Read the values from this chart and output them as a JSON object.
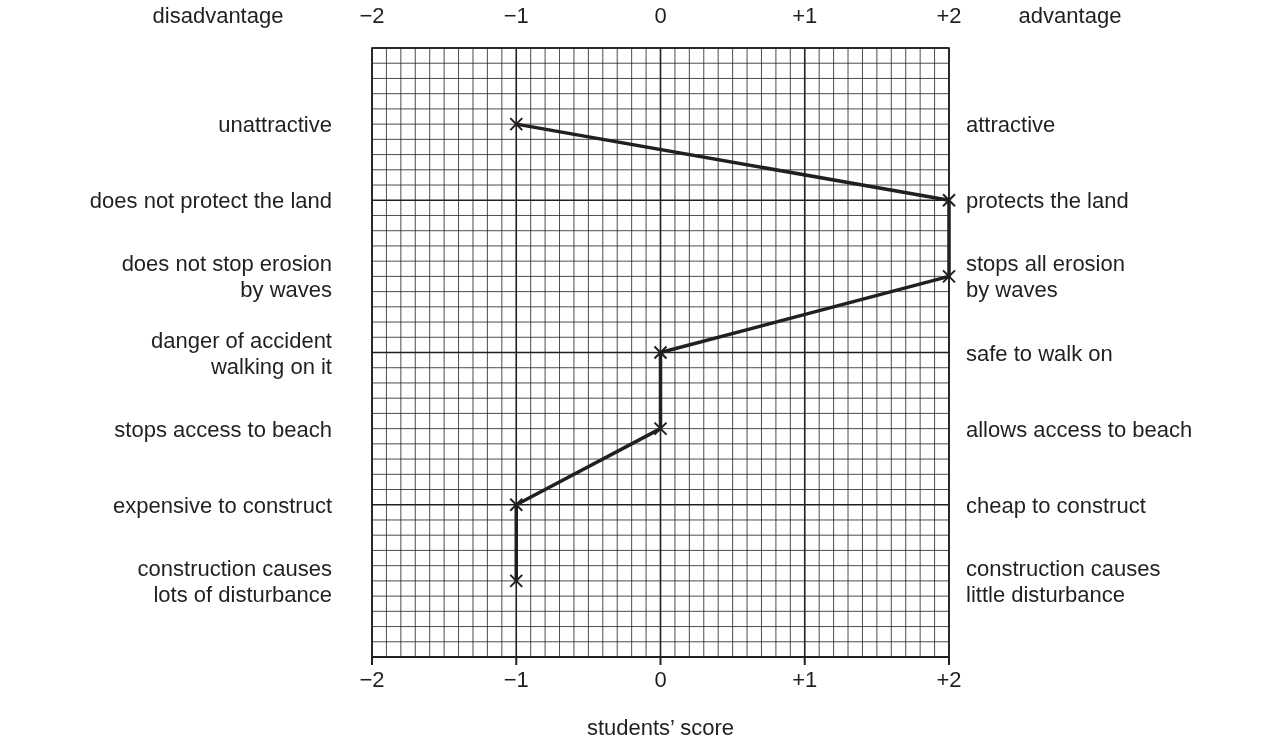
{
  "chart_data": {
    "type": "line",
    "orientation": "horizontal",
    "categories": [
      "unattractive",
      "does not protect the land",
      "does not stop erosion\nby waves",
      "danger of accident\nwalking on it",
      "stops access to beach",
      "expensive to construct",
      "construction causes\nlots of disturbance"
    ],
    "y2_categories": [
      "attractive",
      "protects the land",
      "stops all erosion\nby waves",
      "safe to walk on",
      "allows access to beach",
      "cheap to construct",
      "construction causes\nlittle disturbance"
    ],
    "series": [
      {
        "color": "#231f20",
        "values": [
          -1,
          2,
          2,
          0,
          0,
          -1,
          -1
        ]
      }
    ],
    "xlim": [
      -2,
      2
    ],
    "xticks": [
      {
        "value": -2,
        "label": "−2"
      },
      {
        "value": -1,
        "label": "−1"
      },
      0,
      {
        "value": 1,
        "label": "+1"
      },
      {
        "value": 2,
        "label": "+2"
      }
    ],
    "x2lim": [
      -2,
      2
    ],
    "x2ticks": [
      {
        "value": -2,
        "label": "−2"
      },
      {
        "value": -1,
        "label": "−1"
      },
      0,
      {
        "value": 1,
        "label": "+1"
      },
      {
        "value": 2,
        "label": "+2"
      }
    ],
    "xlabel": "students’ score",
    "annotations": [
      "disadvantage",
      "advantage"
    ],
    "grid": true,
    "marker": "cross",
    "line_style": "solid"
  }
}
